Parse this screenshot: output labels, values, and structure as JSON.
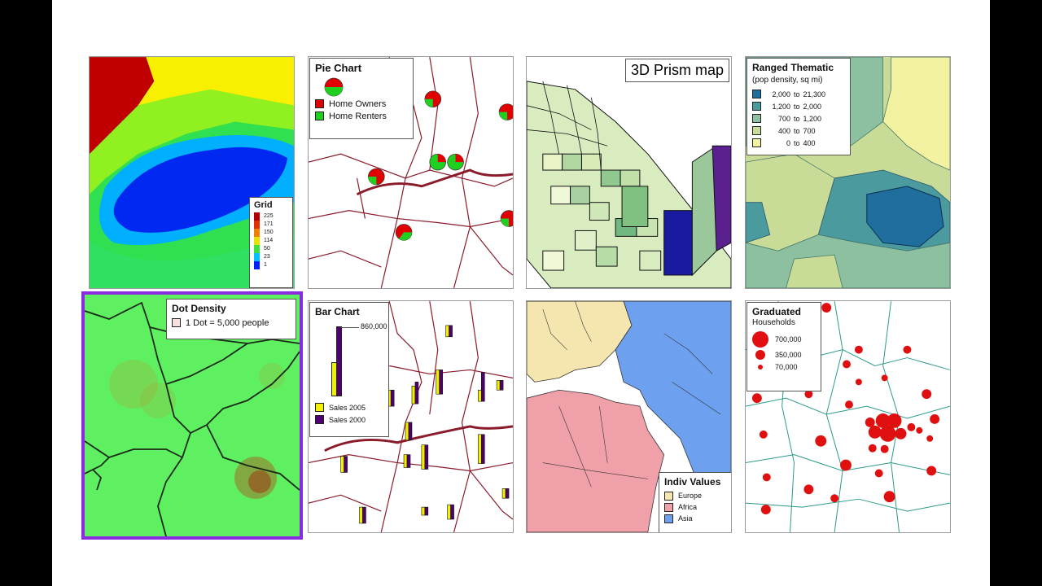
{
  "tiles": {
    "grid": {
      "legend_title": "Grid",
      "values": [
        "225",
        "171",
        "150",
        "114",
        "50",
        "23",
        "1"
      ],
      "colors": [
        "#b30000",
        "#e03000",
        "#f08000",
        "#e8e000",
        "#40e040",
        "#00c0ff",
        "#0020ff"
      ]
    },
    "pie": {
      "legend_title": "Pie Chart",
      "items": [
        {
          "label": "Home Owners",
          "color": "#e00000"
        },
        {
          "label": "Home Renters",
          "color": "#20d020"
        }
      ]
    },
    "prism": {
      "title": "3D Prism map"
    },
    "ranged": {
      "legend_title": "Ranged Thematic",
      "subtitle": "(pop density, sq mi)",
      "rows": [
        {
          "from": "2,000",
          "to": "to",
          "upper": "21,300",
          "color": "#1f6e9e"
        },
        {
          "from": "1,200",
          "to": "to",
          "upper": "2,000",
          "color": "#4a9a9e"
        },
        {
          "from": "700",
          "to": "to",
          "upper": "1,200",
          "color": "#8cc0a0"
        },
        {
          "from": "400",
          "to": "to",
          "upper": "700",
          "color": "#c8dc98"
        },
        {
          "from": "0",
          "to": "to",
          "upper": "400",
          "color": "#f2f2a0"
        }
      ]
    },
    "dot": {
      "legend_title": "Dot Density",
      "legend_text": "1 Dot = 5,000 people"
    },
    "bar": {
      "legend_title": "Bar Chart",
      "max_label": "860,000",
      "items": [
        {
          "label": "Sales 2005",
          "color": "#f0f000"
        },
        {
          "label": "Sales 2000",
          "color": "#500070"
        }
      ]
    },
    "indiv": {
      "legend_title": "Indiv Values",
      "items": [
        {
          "label": "Europe",
          "color": "#f5e6b0"
        },
        {
          "label": "Africa",
          "color": "#f0a0a8"
        },
        {
          "label": "Asia",
          "color": "#6ea0f0"
        }
      ]
    },
    "graduated": {
      "legend_title": "Graduated",
      "subtitle": "Households",
      "rows": [
        {
          "label": "700,000"
        },
        {
          "label": "350,000"
        },
        {
          "label": "70,000"
        }
      ]
    }
  }
}
